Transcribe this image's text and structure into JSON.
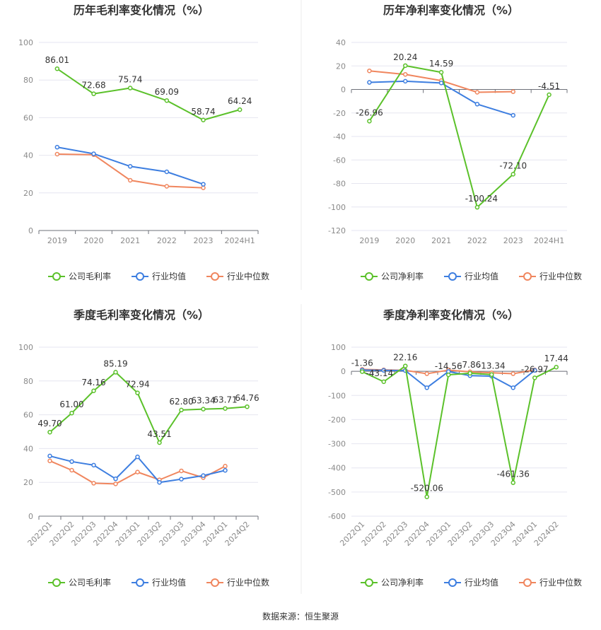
{
  "source_text": "数据来源：恒生聚源",
  "legend_gross": [
    "公司毛利率",
    "行业均值",
    "行业中位数"
  ],
  "legend_net": [
    "公司净利率",
    "行业均值",
    "行业中位数"
  ],
  "colors": {
    "company": "#5bc12a",
    "industry_avg": "#3d7ee0",
    "industry_median": "#f0865e"
  },
  "chart_data": [
    {
      "type": "line",
      "title": "历年毛利率变化情况（%）",
      "categories": [
        "2019",
        "2020",
        "2021",
        "2022",
        "2023",
        "2024H1"
      ],
      "ylim": [
        0,
        100
      ],
      "yticks": [
        0,
        20,
        40,
        60,
        80,
        100
      ],
      "grid": true,
      "legend": "bottom",
      "series": [
        {
          "name": "公司毛利率",
          "values": [
            86.01,
            72.68,
            75.74,
            69.09,
            58.74,
            64.24
          ],
          "labels": [
            "86.01",
            "72.68",
            "75.74",
            "69.09",
            "58.74",
            "64.24"
          ]
        },
        {
          "name": "行业均值",
          "values": [
            44.3,
            40.8,
            34.1,
            31.2,
            24.6,
            null
          ]
        },
        {
          "name": "行业中位数",
          "values": [
            40.6,
            40.3,
            26.7,
            23.5,
            22.7,
            null
          ]
        }
      ]
    },
    {
      "type": "line",
      "title": "历年净利率变化情况（%）",
      "categories": [
        "2019",
        "2020",
        "2021",
        "2022",
        "2023",
        "2024H1"
      ],
      "ylim": [
        -120,
        40
      ],
      "yticks": [
        -120,
        -100,
        -80,
        -60,
        -40,
        -20,
        0,
        20,
        40
      ],
      "grid": true,
      "legend": "bottom",
      "series": [
        {
          "name": "公司净利率",
          "values": [
            -26.96,
            20.24,
            14.59,
            -100.24,
            -72.1,
            -4.51
          ],
          "labels": [
            "-26.96",
            "20.24",
            "14.59",
            "-100.24",
            "-72.10",
            "-4.51"
          ]
        },
        {
          "name": "行业均值",
          "values": [
            6.0,
            7.0,
            5.5,
            -12.5,
            -22.0,
            null
          ]
        },
        {
          "name": "行业中位数",
          "values": [
            15.8,
            12.8,
            7.5,
            -2.4,
            -1.9,
            null
          ]
        }
      ]
    },
    {
      "type": "line",
      "title": "季度毛利率变化情况（%）",
      "categories": [
        "2022Q1",
        "2022Q2",
        "2022Q3",
        "2022Q4",
        "2023Q1",
        "2023Q2",
        "2023Q3",
        "2023Q4",
        "2024Q1",
        "2024Q2"
      ],
      "ylim": [
        0,
        100
      ],
      "yticks": [
        0,
        20,
        40,
        60,
        80,
        100
      ],
      "grid": true,
      "legend": "bottom",
      "series": [
        {
          "name": "公司毛利率",
          "values": [
            49.7,
            61.0,
            74.16,
            85.19,
            72.94,
            43.51,
            62.8,
            63.34,
            63.71,
            64.76
          ],
          "labels": [
            "49.70",
            "61.00",
            "74.16",
            "85.19",
            "72.94",
            "43.51",
            "62.80",
            "63.34",
            "63.71",
            "64.76"
          ]
        },
        {
          "name": "行业均值",
          "values": [
            35.6,
            32.3,
            30.2,
            22.1,
            35.1,
            20.0,
            21.9,
            24.0,
            27.1,
            null
          ]
        },
        {
          "name": "行业中位数",
          "values": [
            32.7,
            27.2,
            19.5,
            19.1,
            26.1,
            21.5,
            26.8,
            22.8,
            29.6,
            null
          ]
        }
      ]
    },
    {
      "type": "line",
      "title": "季度净利率变化情况（%）",
      "categories": [
        "2022Q1",
        "2022Q2",
        "2022Q3",
        "2022Q4",
        "2023Q1",
        "2023Q2",
        "2023Q3",
        "2023Q4",
        "2024Q1",
        "2024Q2"
      ],
      "ylim": [
        -600,
        100
      ],
      "yticks": [
        -600,
        -500,
        -400,
        -300,
        -200,
        -100,
        0,
        100
      ],
      "grid": true,
      "legend": "bottom",
      "series": [
        {
          "name": "公司净利率",
          "values": [
            -1.36,
            -43.14,
            22.16,
            -520.06,
            -14.56,
            -7.86,
            -13.34,
            -461.36,
            -26.97,
            17.44
          ],
          "labels": [
            "-1.36",
            "-43.14",
            "22.16",
            "-520.06",
            "-14.56",
            "-7.86",
            "-13.34",
            "-461.36",
            "-26.97",
            "17.44"
          ]
        },
        {
          "name": "行业均值",
          "values": [
            5,
            4,
            3,
            -68,
            -1,
            -18,
            -20,
            -68,
            4,
            null
          ]
        },
        {
          "name": "行业中位数",
          "values": [
            8,
            6,
            4,
            -10,
            5,
            -2,
            -6,
            -10,
            6,
            null
          ]
        }
      ]
    }
  ]
}
